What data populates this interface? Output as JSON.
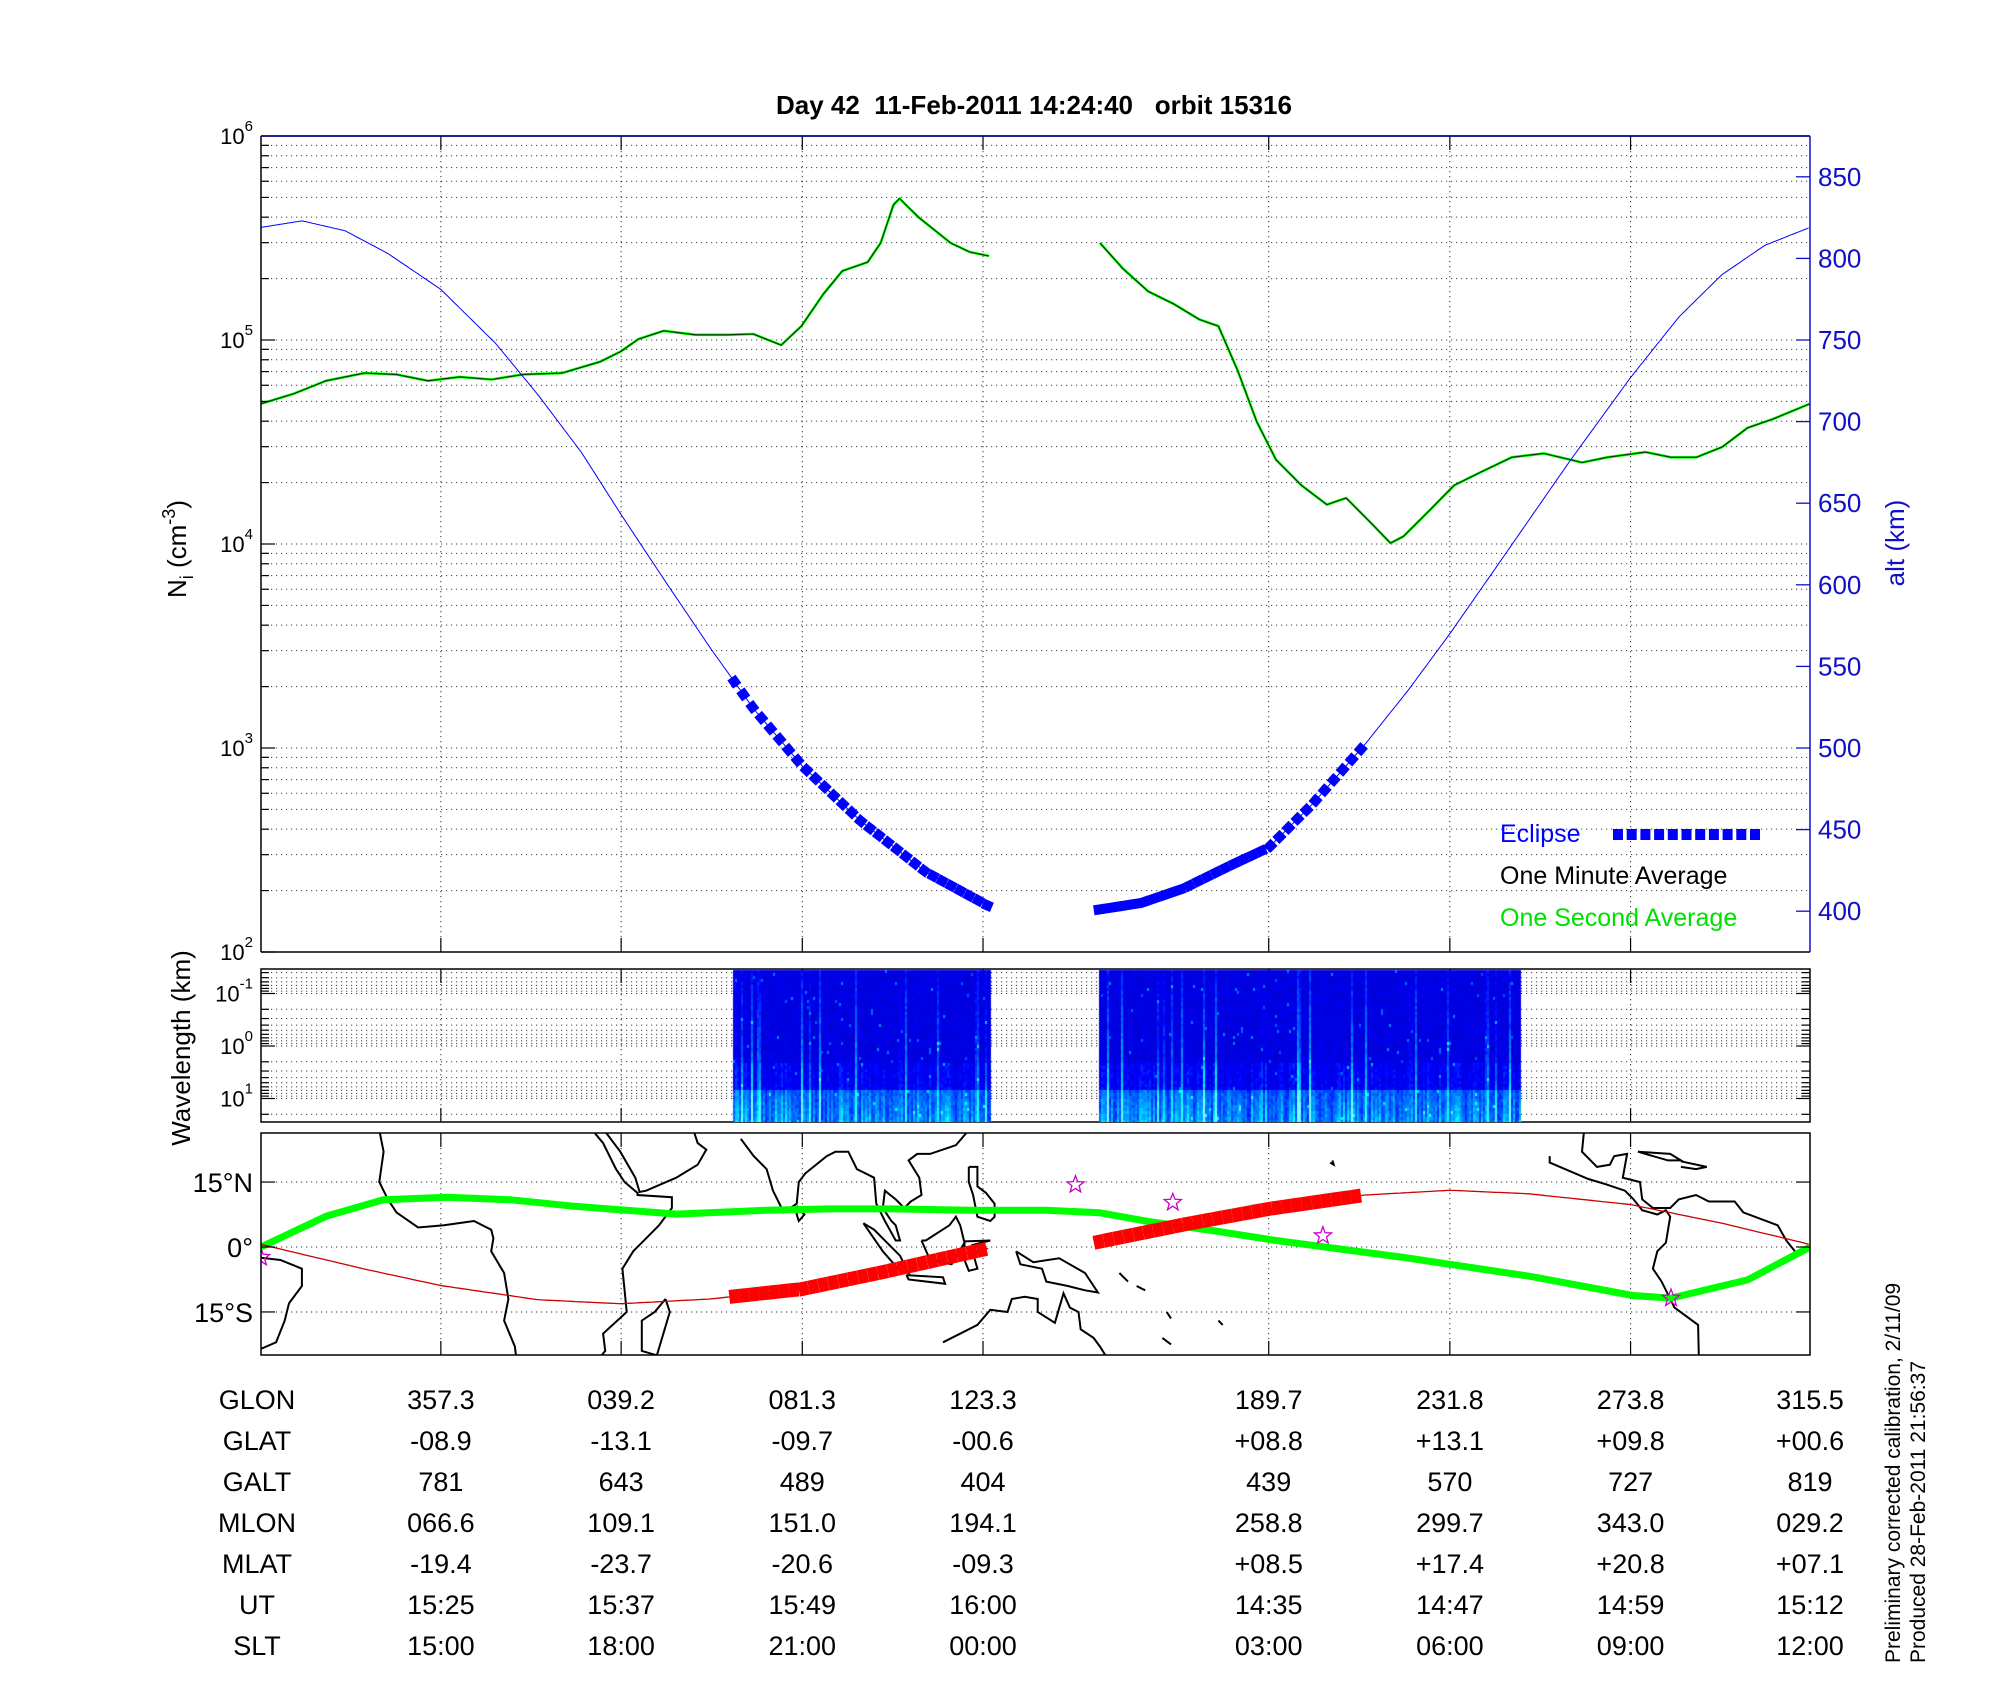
{
  "title": "Day 42  11-Feb-2011 14:24:40   orbit 15316",
  "axes": {
    "ni_label_main": "N",
    "ni_label_sub": "i",
    "ni_label_unit": " (cm",
    "ni_label_exp": "-3",
    "ni_label_close": ")",
    "alt_label": "alt (km)",
    "wavelength_label": "Wavelength (km)"
  },
  "legend": {
    "eclipse": "Eclipse",
    "one_minute": "One Minute Average",
    "one_second": "One Second Average"
  },
  "footer": {
    "line1": "Preliminary corrected calibration, 2/11/09",
    "line2": "Produced 28-Feb-2011 21:56:37"
  },
  "colors": {
    "one_minute": "#000000",
    "one_second": "#00ff00",
    "altitude": "#0000ff",
    "eclipse": "#0000ff",
    "track": "#cc0000",
    "track_eclipse": "#ff0000",
    "dip_equator": "#00ff00",
    "station": "#cc00cc",
    "alt_axis": "#1010c8"
  },
  "table": {
    "rows": [
      {
        "label": "GLON",
        "values": [
          "357.3",
          "039.2",
          "081.3",
          "123.3",
          "189.7",
          "231.8",
          "273.8",
          "315.5"
        ]
      },
      {
        "label": "GLAT",
        "values": [
          "-08.9",
          "-13.1",
          "-09.7",
          "-00.6",
          "+08.8",
          "+13.1",
          "+09.8",
          "+00.6"
        ]
      },
      {
        "label": "GALT",
        "values": [
          "781",
          "643",
          "489",
          "404",
          "439",
          "570",
          "727",
          "819"
        ]
      },
      {
        "label": "MLON",
        "values": [
          "066.6",
          "109.1",
          "151.0",
          "194.1",
          "258.8",
          "299.7",
          "343.0",
          "029.2"
        ]
      },
      {
        "label": "MLAT",
        "values": [
          "-19.4",
          "-23.7",
          "-20.6",
          "-09.3",
          "+08.5",
          "+17.4",
          "+20.8",
          "+07.1"
        ]
      },
      {
        "label": "UT",
        "values": [
          "15:25",
          "15:37",
          "15:49",
          "16:00",
          "14:35",
          "14:47",
          "14:59",
          "15:12"
        ]
      },
      {
        "label": "SLT",
        "values": [
          "15:00",
          "18:00",
          "21:00",
          "00:00",
          "03:00",
          "06:00",
          "09:00",
          "12:00"
        ]
      }
    ]
  },
  "chart_data": [
    {
      "type": "line",
      "panel": "ion-density",
      "xlabel": "",
      "ylabel": "N_i (cm^-3)",
      "y2label": "alt (km)",
      "xlim": [
        -44.5,
        315.5
      ],
      "yscale": "log",
      "ylim": [
        100,
        1000000
      ],
      "yticks": [
        {
          "base": "10",
          "exp": "2"
        },
        {
          "base": "10",
          "exp": "3"
        },
        {
          "base": "10",
          "exp": "4"
        },
        {
          "base": "10",
          "exp": "5"
        },
        {
          "base": "10",
          "exp": "6"
        }
      ],
      "y2lim": [
        375,
        875
      ],
      "y2ticks": [
        "400",
        "450",
        "500",
        "550",
        "600",
        "650",
        "700",
        "750",
        "800",
        "850"
      ],
      "grid": true,
      "legend_position": "bottom-right",
      "series": [
        {
          "name": "One Minute Average",
          "color": "#000000",
          "segments": [
            [
              [
                -44.5,
                48700
              ],
              [
                -36.8,
                54600
              ],
              [
                -29.4,
                63100
              ],
              [
                -20.5,
                68800
              ],
              [
                -13.1,
                67800
              ],
              [
                -5.7,
                63100
              ],
              [
                1.7,
                65900
              ],
              [
                9.1,
                64000
              ],
              [
                16.5,
                67800
              ],
              [
                25.4,
                68800
              ],
              [
                34.3,
                78300
              ],
              [
                39.1,
                87800
              ],
              [
                43.2,
                101000
              ],
              [
                49.1,
                111000
              ],
              [
                56.5,
                106000
              ],
              [
                63.9,
                106000
              ],
              [
                69.9,
                107000
              ],
              [
                76.4,
                94400
              ],
              [
                81.1,
                117000
              ],
              [
                86.2,
                168000
              ],
              [
                90.6,
                218000
              ],
              [
                96.5,
                241000
              ],
              [
                99.5,
                299000
              ],
              [
                102.5,
                460000
              ],
              [
                103.9,
                494000
              ],
              [
                108.4,
                398000
              ],
              [
                115.8,
                299000
              ],
              [
                120.2,
                270000
              ],
              [
                124.7,
                258000
              ]
            ],
            [
              [
                150.5,
                299000
              ],
              [
                155.8,
                224000
              ],
              [
                161.7,
                173000
              ],
              [
                167.7,
                150000
              ],
              [
                173.6,
                126000
              ],
              [
                178.0,
                117000
              ],
              [
                182.5,
                70800
              ],
              [
                186.9,
                39800
              ],
              [
                191.4,
                25900
              ],
              [
                197.3,
                19400
              ],
              [
                203.2,
                15600
              ],
              [
                207.7,
                16800
              ],
              [
                213.6,
                12600
              ],
              [
                218.0,
                10100
              ],
              [
                221.0,
                10900
              ],
              [
                226.9,
                14500
              ],
              [
                232.8,
                19400
              ],
              [
                238.8,
                22400
              ],
              [
                246.2,
                26600
              ],
              [
                253.6,
                27800
              ],
              [
                262.5,
                25100
              ],
              [
                268.4,
                26600
              ],
              [
                277.3,
                28200
              ],
              [
                283.2,
                26600
              ],
              [
                289.1,
                26600
              ],
              [
                295.1,
                29900
              ],
              [
                301.0,
                37100
              ],
              [
                306.9,
                41000
              ],
              [
                315.5,
                48700
              ]
            ]
          ]
        },
        {
          "name": "One Second Average",
          "color": "#00ff00",
          "same_as": "One Minute Average"
        },
        {
          "name": "altitude",
          "axis": "right",
          "color": "#0000ff",
          "segments": [
            [
              [
                -44.5,
                819
              ],
              [
                -35,
                823
              ],
              [
                -25,
                817
              ],
              [
                -15,
                803
              ],
              [
                -2.7,
                781
              ],
              [
                10,
                748
              ],
              [
                20,
                716
              ],
              [
                30,
                681
              ],
              [
                39.2,
                643
              ],
              [
                50,
                600
              ],
              [
                60,
                561
              ],
              [
                70,
                524
              ],
              [
                81.3,
                489
              ],
              [
                95,
                455
              ],
              [
                110,
                424
              ],
              [
                124.7,
                403
              ]
            ],
            [
              [
                150.2,
                401
              ],
              [
                160,
                405
              ],
              [
                170,
                414
              ],
              [
                180,
                427
              ],
              [
                189.7,
                439
              ],
              [
                200,
                466
              ],
              [
                212,
                502
              ],
              [
                222,
                535
              ],
              [
                231.8,
                570
              ],
              [
                245,
                620
              ],
              [
                260,
                677
              ],
              [
                273.8,
                727
              ],
              [
                285,
                764
              ],
              [
                295,
                790
              ],
              [
                305,
                808
              ],
              [
                315.5,
                819
              ]
            ]
          ]
        }
      ],
      "eclipse_intervals": [
        [
          65.5,
          124.7
        ],
        [
          150.2,
          212
        ]
      ]
    },
    {
      "type": "heatmap",
      "panel": "spectrogram",
      "ylabel": "Wavelength (km)",
      "yscale": "log",
      "yreversed": true,
      "yticks": [
        {
          "base": "10",
          "exp": "-1"
        },
        {
          "base": "10",
          "exp": "0"
        },
        {
          "base": "10",
          "exp": "1"
        }
      ],
      "coverage": [
        [
          65.1,
          124.9
        ],
        [
          150.2,
          248.2
        ]
      ],
      "colormap": "jet-blue"
    },
    {
      "type": "map",
      "panel": "ground-track",
      "latlim": [
        -25,
        26
      ],
      "latticks": [
        {
          "value": 15,
          "label": "15°N"
        },
        {
          "value": 0,
          "label": "0°"
        },
        {
          "value": -15,
          "label": "15°S"
        }
      ],
      "track": [
        [
          [
            -44.5,
            0.6
          ],
          [
            -20,
            -5.2
          ],
          [
            -2.7,
            -8.9
          ],
          [
            20,
            -12.2
          ],
          [
            39.2,
            -13.1
          ],
          [
            60,
            -12.0
          ],
          [
            81.3,
            -9.7
          ],
          [
            100,
            -5.8
          ],
          [
            124.7,
            -0.3
          ]
        ],
        [
          [
            150.2,
            1.2
          ],
          [
            170,
            5.2
          ],
          [
            189.7,
            8.8
          ],
          [
            212,
            12.0
          ],
          [
            231.8,
            13.1
          ],
          [
            250,
            12.3
          ],
          [
            273.8,
            9.8
          ],
          [
            295,
            5.5
          ],
          [
            315.5,
            0.6
          ]
        ]
      ],
      "dip_equator": [
        [
          -44.5,
          0
        ],
        [
          -29.4,
          7.1
        ],
        [
          -16.1,
          10.9
        ],
        [
          -1.2,
          11.5
        ],
        [
          13.6,
          10.9
        ],
        [
          28.4,
          9.4
        ],
        [
          52.1,
          7.6
        ],
        [
          72.8,
          8.5
        ],
        [
          87.7,
          8.8
        ],
        [
          102.5,
          8.8
        ],
        [
          120.2,
          8.5
        ],
        [
          138.0,
          8.5
        ],
        [
          150.5,
          7.9
        ],
        [
          161.7,
          5.9
        ],
        [
          176.5,
          3.8
        ],
        [
          191.4,
          1.5
        ],
        [
          221.0,
          -2.4
        ],
        [
          250.6,
          -6.8
        ],
        [
          274.3,
          -11.2
        ],
        [
          283.2,
          -11.8
        ],
        [
          301.0,
          -7.6
        ],
        [
          315.5,
          0
        ]
      ],
      "stations": [
        [
          -44.5,
          -2.4
        ],
        [
          144.8,
          14.4
        ],
        [
          167.4,
          10.3
        ],
        [
          202.3,
          2.6
        ],
        [
          283.2,
          -11.8
        ]
      ]
    }
  ]
}
